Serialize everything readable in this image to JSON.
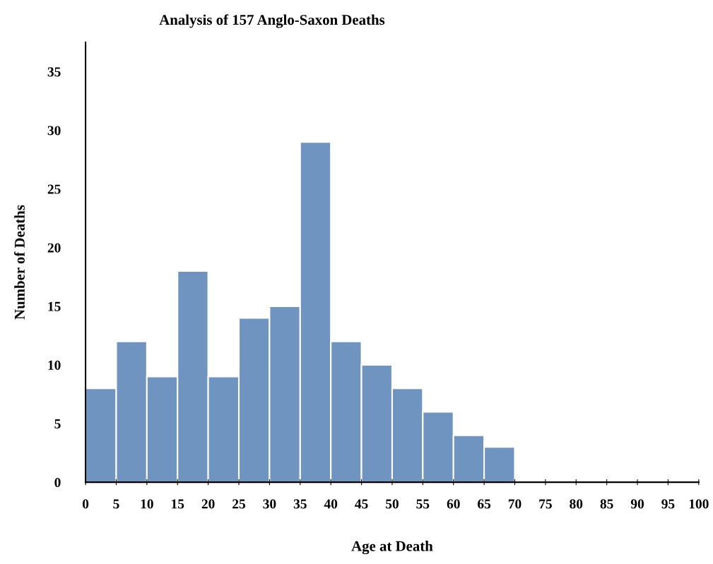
{
  "chart_data": {
    "type": "histogram",
    "title": "Analysis of 157 Anglo-Saxon Deaths",
    "xlabel": "Age at Death",
    "ylabel": "Number of Deaths",
    "bins": [
      0,
      5,
      10,
      15,
      20,
      25,
      30,
      35,
      40,
      45,
      50,
      55,
      60,
      65,
      70
    ],
    "values": [
      8,
      12,
      9,
      18,
      9,
      14,
      15,
      29,
      12,
      10,
      8,
      6,
      4,
      3
    ],
    "color": "#7094c0",
    "xlim": [
      0,
      100
    ],
    "xticks": [
      0,
      5,
      10,
      15,
      20,
      25,
      30,
      35,
      40,
      45,
      50,
      55,
      60,
      65,
      70,
      75,
      80,
      85,
      90,
      95,
      100
    ],
    "ylim": [
      0,
      37.5
    ],
    "yticks": [
      0,
      5,
      10,
      15,
      20,
      25,
      30,
      35
    ],
    "grid": false,
    "legend": false
  }
}
